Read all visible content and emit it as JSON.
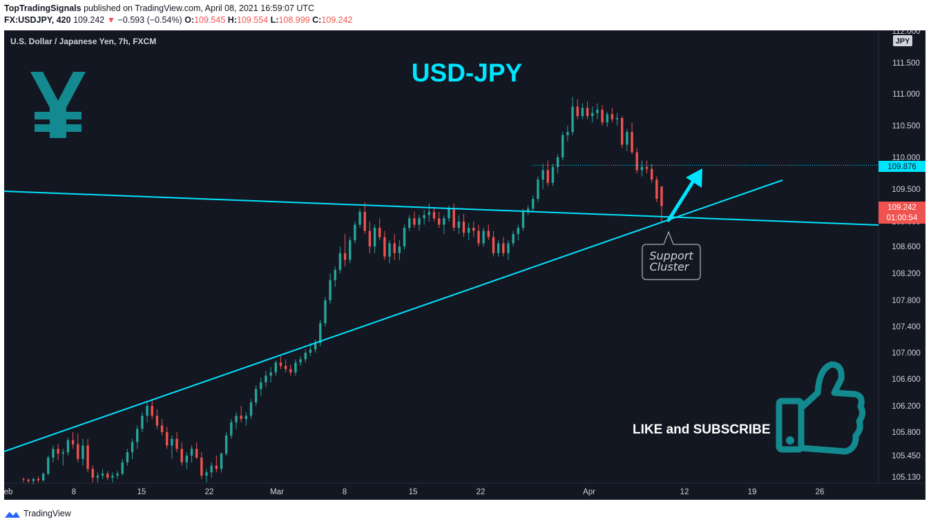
{
  "header": {
    "author": "TopTradingSignals",
    "published_text": "published on TradingView.com, April 08, 2021 16:59:07 UTC",
    "symbol": "FX:USDJPY, 420",
    "last": "109.242",
    "change_arrow": "▼",
    "change": "−0.593 (−0.54%)",
    "o_label": "O:",
    "o_value": "109.545",
    "h_label": "H:",
    "h_value": "109.554",
    "l_label": "L:",
    "l_value": "108.999",
    "c_label": "C:",
    "c_value": "109.242"
  },
  "footer": {
    "brand": "TradingView"
  },
  "colors": {
    "background": "#131722",
    "up": "#26a69a",
    "down": "#ef5350",
    "trendline": "#00e5ff",
    "axis_text": "#d1d4dc",
    "yen_icon": "#138a8f"
  },
  "chart_data": {
    "type": "candlestick",
    "title": "USD-JPY",
    "instrument": "U.S. Dollar / Japanese Yen, 7h, FXCM",
    "currency_badge": "JPY",
    "y_ticks": [
      "112.000",
      "111.500",
      "111.000",
      "110.500",
      "110.000",
      "109.500",
      "109.000",
      "108.600",
      "108.200",
      "107.800",
      "107.400",
      "107.000",
      "106.600",
      "106.200",
      "105.800",
      "105.450",
      "105.130"
    ],
    "x_ticks": [
      "eb",
      "8",
      "15",
      "22",
      "Mar",
      "8",
      "15",
      "22",
      "Apr",
      "12",
      "19",
      "26"
    ],
    "price_labels": {
      "level": "109.876",
      "last": "109.242",
      "countdown": "01:00:54"
    },
    "annotations": {
      "callout": [
        "Support",
        "Cluster"
      ],
      "cta": "LIKE and SUBSCRIBE"
    },
    "trendlines": [
      {
        "name": "horizontal resistance turned support",
        "from": [
          "Feb 4",
          109.55
        ],
        "to": [
          "Apr 30",
          108.97
        ]
      },
      {
        "name": "rising support",
        "from": [
          "Feb 4",
          105.5
        ],
        "to": [
          "Apr 22",
          109.65
        ]
      }
    ],
    "ylim": [
      105.0,
      112.05
    ],
    "candles": [
      [
        105.1,
        105.12,
        105.05,
        105.09
      ],
      [
        105.09,
        105.11,
        105.04,
        105.07
      ],
      [
        105.07,
        105.12,
        105.02,
        105.1
      ],
      [
        105.1,
        105.14,
        105.05,
        105.08
      ],
      [
        105.08,
        105.2,
        105.06,
        105.18
      ],
      [
        105.18,
        105.45,
        105.15,
        105.42
      ],
      [
        105.42,
        105.6,
        105.35,
        105.55
      ],
      [
        105.55,
        105.62,
        105.38,
        105.48
      ],
      [
        105.48,
        105.55,
        105.3,
        105.5
      ],
      [
        105.5,
        105.72,
        105.45,
        105.68
      ],
      [
        105.68,
        105.8,
        105.55,
        105.62
      ],
      [
        105.62,
        105.78,
        105.35,
        105.4
      ],
      [
        105.4,
        105.7,
        105.3,
        105.6
      ],
      [
        105.6,
        105.7,
        105.2,
        105.25
      ],
      [
        105.25,
        105.3,
        105.05,
        105.12
      ],
      [
        105.12,
        105.2,
        105.05,
        105.15
      ],
      [
        105.15,
        105.25,
        105.1,
        105.18
      ],
      [
        105.18,
        105.22,
        105.08,
        105.12
      ],
      [
        105.12,
        105.2,
        105.05,
        105.15
      ],
      [
        105.15,
        105.22,
        105.1,
        105.18
      ],
      [
        105.18,
        105.4,
        105.15,
        105.35
      ],
      [
        105.35,
        105.55,
        105.3,
        105.5
      ],
      [
        105.5,
        105.7,
        105.4,
        105.65
      ],
      [
        105.65,
        105.9,
        105.55,
        105.85
      ],
      [
        105.85,
        106.1,
        105.8,
        106.05
      ],
      [
        106.05,
        106.25,
        105.95,
        106.2
      ],
      [
        106.2,
        106.3,
        106.0,
        106.05
      ],
      [
        106.05,
        106.15,
        105.85,
        105.9
      ],
      [
        105.9,
        106.0,
        105.75,
        105.8
      ],
      [
        105.8,
        105.88,
        105.55,
        105.6
      ],
      [
        105.6,
        105.75,
        105.4,
        105.7
      ],
      [
        105.7,
        105.8,
        105.5,
        105.55
      ],
      [
        105.55,
        105.65,
        105.3,
        105.35
      ],
      [
        105.35,
        105.5,
        105.25,
        105.45
      ],
      [
        105.45,
        105.6,
        105.35,
        105.55
      ],
      [
        105.55,
        105.65,
        105.4,
        105.42
      ],
      [
        105.42,
        105.5,
        105.1,
        105.15
      ],
      [
        105.15,
        105.25,
        105.05,
        105.2
      ],
      [
        105.2,
        105.35,
        105.12,
        105.3
      ],
      [
        105.3,
        105.45,
        105.2,
        105.25
      ],
      [
        105.25,
        105.5,
        105.2,
        105.48
      ],
      [
        105.48,
        105.8,
        105.45,
        105.75
      ],
      [
        105.75,
        106.0,
        105.7,
        105.95
      ],
      [
        105.95,
        106.1,
        105.85,
        106.05
      ],
      [
        106.05,
        106.2,
        105.95,
        106.0
      ],
      [
        106.0,
        106.1,
        105.9,
        106.05
      ],
      [
        106.05,
        106.3,
        106.0,
        106.25
      ],
      [
        106.25,
        106.5,
        106.2,
        106.45
      ],
      [
        106.45,
        106.62,
        106.35,
        106.55
      ],
      [
        106.55,
        106.72,
        106.48,
        106.65
      ],
      [
        106.65,
        106.78,
        106.55,
        106.7
      ],
      [
        106.7,
        106.88,
        106.65,
        106.85
      ],
      [
        106.85,
        106.95,
        106.75,
        106.8
      ],
      [
        106.8,
        106.9,
        106.7,
        106.75
      ],
      [
        106.75,
        106.82,
        106.65,
        106.7
      ],
      [
        106.7,
        106.9,
        106.65,
        106.85
      ],
      [
        106.85,
        106.95,
        106.8,
        106.9
      ],
      [
        106.9,
        107.05,
        106.85,
        107.0
      ],
      [
        107.0,
        107.15,
        106.95,
        107.05
      ],
      [
        107.05,
        107.2,
        107.0,
        107.15
      ],
      [
        107.15,
        107.5,
        107.1,
        107.45
      ],
      [
        107.45,
        107.85,
        107.4,
        107.8
      ],
      [
        107.8,
        108.2,
        107.75,
        108.1
      ],
      [
        108.1,
        108.3,
        108.0,
        108.25
      ],
      [
        108.25,
        108.6,
        108.2,
        108.5
      ],
      [
        108.5,
        108.8,
        108.3,
        108.4
      ],
      [
        108.4,
        108.75,
        108.35,
        108.7
      ],
      [
        108.7,
        109.0,
        108.65,
        108.95
      ],
      [
        108.95,
        109.2,
        108.9,
        109.15
      ],
      [
        109.15,
        109.3,
        108.8,
        108.85
      ],
      [
        108.85,
        109.0,
        108.5,
        108.6
      ],
      [
        108.6,
        108.95,
        108.5,
        108.9
      ],
      [
        108.9,
        109.05,
        108.7,
        108.75
      ],
      [
        108.75,
        108.85,
        108.4,
        108.45
      ],
      [
        108.45,
        108.7,
        108.35,
        108.65
      ],
      [
        108.65,
        108.8,
        108.4,
        108.5
      ],
      [
        108.5,
        108.7,
        108.4,
        108.6
      ],
      [
        108.6,
        108.95,
        108.55,
        108.9
      ],
      [
        108.9,
        109.1,
        108.85,
        109.05
      ],
      [
        109.05,
        109.15,
        108.9,
        108.95
      ],
      [
        108.95,
        109.1,
        108.85,
        109.05
      ],
      [
        109.05,
        109.18,
        108.95,
        109.1
      ],
      [
        109.1,
        109.28,
        109.0,
        109.15
      ],
      [
        109.15,
        109.22,
        109.0,
        109.05
      ],
      [
        109.05,
        109.15,
        108.9,
        108.95
      ],
      [
        108.95,
        109.1,
        108.8,
        109.05
      ],
      [
        109.05,
        109.25,
        109.0,
        109.2
      ],
      [
        109.2,
        109.28,
        108.85,
        108.9
      ],
      [
        108.9,
        109.1,
        108.8,
        109.0
      ],
      [
        109.0,
        109.12,
        108.75,
        108.82
      ],
      [
        108.82,
        108.98,
        108.7,
        108.9
      ],
      [
        108.9,
        109.0,
        108.75,
        108.85
      ],
      [
        108.85,
        108.95,
        108.6,
        108.65
      ],
      [
        108.65,
        108.9,
        108.6,
        108.85
      ],
      [
        108.85,
        108.95,
        108.7,
        108.75
      ],
      [
        108.75,
        108.85,
        108.45,
        108.5
      ],
      [
        108.5,
        108.7,
        108.45,
        108.65
      ],
      [
        108.65,
        108.75,
        108.45,
        108.5
      ],
      [
        108.5,
        108.7,
        108.4,
        108.65
      ],
      [
        108.65,
        108.85,
        108.6,
        108.8
      ],
      [
        108.8,
        108.95,
        108.7,
        108.9
      ],
      [
        108.9,
        109.2,
        108.85,
        109.15
      ],
      [
        109.15,
        109.25,
        109.1,
        109.2
      ],
      [
        109.2,
        109.4,
        109.15,
        109.35
      ],
      [
        109.35,
        109.7,
        109.3,
        109.65
      ],
      [
        109.65,
        109.9,
        109.5,
        109.8
      ],
      [
        109.8,
        109.95,
        109.55,
        109.6
      ],
      [
        109.6,
        109.9,
        109.55,
        109.85
      ],
      [
        109.85,
        110.05,
        109.75,
        110.0
      ],
      [
        110.0,
        110.4,
        109.95,
        110.35
      ],
      [
        110.35,
        110.5,
        110.25,
        110.4
      ],
      [
        110.4,
        110.95,
        110.35,
        110.8
      ],
      [
        110.8,
        110.92,
        110.6,
        110.65
      ],
      [
        110.65,
        110.85,
        110.6,
        110.78
      ],
      [
        110.78,
        110.88,
        110.6,
        110.65
      ],
      [
        110.65,
        110.8,
        110.55,
        110.7
      ],
      [
        110.7,
        110.85,
        110.6,
        110.75
      ],
      [
        110.75,
        110.82,
        110.5,
        110.55
      ],
      [
        110.55,
        110.72,
        110.48,
        110.68
      ],
      [
        110.68,
        110.78,
        110.55,
        110.6
      ],
      [
        110.6,
        110.7,
        110.5,
        110.62
      ],
      [
        110.62,
        110.65,
        110.15,
        110.2
      ],
      [
        110.2,
        110.45,
        110.1,
        110.4
      ],
      [
        110.4,
        110.55,
        110.05,
        110.08
      ],
      [
        110.08,
        110.15,
        109.75,
        109.8
      ],
      [
        109.8,
        109.95,
        109.7,
        109.85
      ],
      [
        109.85,
        109.95,
        109.75,
        109.82
      ],
      [
        109.82,
        109.9,
        109.6,
        109.65
      ],
      [
        109.65,
        109.7,
        109.3,
        109.35
      ],
      [
        109.54,
        109.55,
        108.99,
        109.24
      ]
    ]
  }
}
